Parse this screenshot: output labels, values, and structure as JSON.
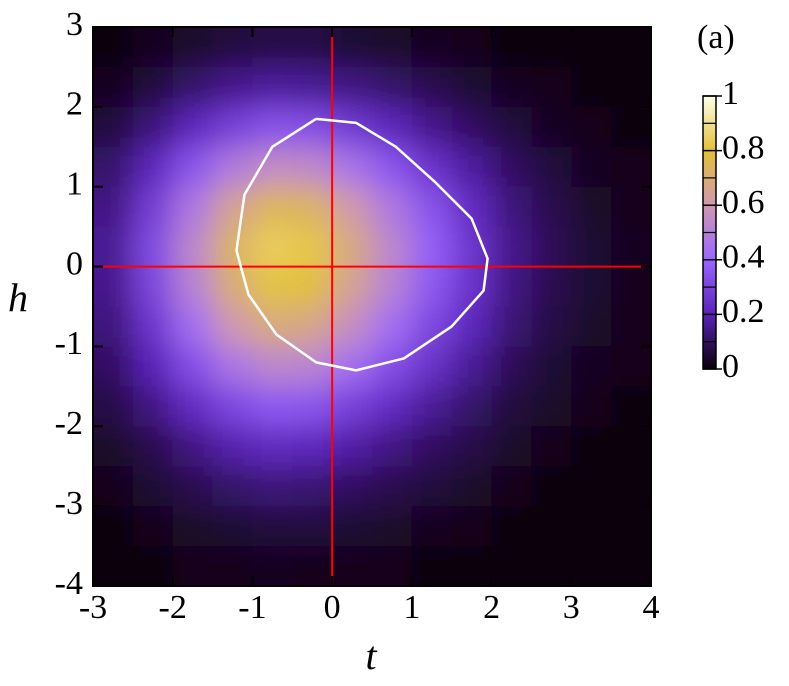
{
  "chart_data": {
    "type": "heatmap",
    "panel_label": "(a)",
    "xlabel": "t",
    "ylabel": "h",
    "x": [
      -2.75,
      -2.25,
      -1.75,
      -1.25,
      -0.75,
      -0.25,
      0.25,
      0.75,
      1.25,
      1.75,
      2.25,
      2.75,
      3.25,
      3.75
    ],
    "y": [
      2.75,
      2.25,
      1.75,
      1.25,
      0.75,
      0.25,
      -0.25,
      -0.75,
      -1.25,
      -1.75,
      -2.25,
      -2.75,
      -3.25,
      -3.75
    ],
    "z": [
      [
        0.01,
        0.03,
        0.04,
        0.06,
        0.07,
        0.07,
        0.05,
        0.04,
        0.03,
        0.02,
        0.01,
        0.01,
        0,
        0
      ],
      [
        0.03,
        0.06,
        0.11,
        0.15,
        0.17,
        0.16,
        0.14,
        0.11,
        0.08,
        0.05,
        0.03,
        0.02,
        0.01,
        0.01
      ],
      [
        0.06,
        0.13,
        0.21,
        0.29,
        0.34,
        0.33,
        0.27,
        0.21,
        0.15,
        0.1,
        0.06,
        0.03,
        0.02,
        0.01
      ],
      [
        0.11,
        0.21,
        0.35,
        0.48,
        0.55,
        0.54,
        0.45,
        0.35,
        0.25,
        0.17,
        0.1,
        0.06,
        0.03,
        0.02
      ],
      [
        0.14,
        0.28,
        0.47,
        0.65,
        0.75,
        0.73,
        0.61,
        0.47,
        0.34,
        0.23,
        0.13,
        0.08,
        0.04,
        0.02
      ],
      [
        0.16,
        0.32,
        0.53,
        0.73,
        0.84,
        0.82,
        0.68,
        0.53,
        0.38,
        0.26,
        0.15,
        0.09,
        0.05,
        0.03
      ],
      [
        0.15,
        0.31,
        0.51,
        0.7,
        0.81,
        0.79,
        0.65,
        0.51,
        0.36,
        0.25,
        0.14,
        0.08,
        0.05,
        0.02
      ],
      [
        0.13,
        0.26,
        0.43,
        0.6,
        0.69,
        0.67,
        0.56,
        0.43,
        0.31,
        0.21,
        0.12,
        0.07,
        0.04,
        0.02
      ],
      [
        0.1,
        0.2,
        0.33,
        0.46,
        0.53,
        0.52,
        0.43,
        0.33,
        0.24,
        0.16,
        0.09,
        0.05,
        0.03,
        0.02
      ],
      [
        0.07,
        0.14,
        0.23,
        0.31,
        0.36,
        0.35,
        0.29,
        0.23,
        0.16,
        0.11,
        0.06,
        0.04,
        0.02,
        0.01
      ],
      [
        0.04,
        0.08,
        0.14,
        0.19,
        0.22,
        0.21,
        0.18,
        0.14,
        0.1,
        0.07,
        0.04,
        0.02,
        0.01,
        0.01
      ],
      [
        0.02,
        0.05,
        0.08,
        0.11,
        0.13,
        0.12,
        0.1,
        0.08,
        0.06,
        0.04,
        0.02,
        0.01,
        0.01,
        0
      ],
      [
        0.01,
        0.02,
        0.04,
        0.05,
        0.06,
        0.06,
        0.05,
        0.04,
        0.03,
        0.02,
        0.01,
        0.01,
        0,
        0
      ],
      [
        0,
        0.01,
        0.02,
        0.02,
        0.03,
        0.02,
        0.02,
        0.02,
        0.01,
        0.01,
        0,
        0,
        0,
        0
      ]
    ],
    "xlim": [
      -3,
      4
    ],
    "ylim": [
      -4,
      3
    ],
    "xticks": [
      -3,
      -2,
      -1,
      0,
      1,
      2,
      3,
      4
    ],
    "yticks": [
      -4,
      -3,
      -2,
      -1,
      0,
      1,
      2,
      3
    ],
    "zlim": [
      0,
      1
    ],
    "zticks": [
      0,
      0.2,
      0.4,
      0.6,
      0.8,
      1
    ],
    "zminor_ticks": [
      0.1,
      0.3,
      0.5,
      0.7,
      0.9
    ],
    "colormap": [
      {
        "value": 0,
        "color": "#0a0008"
      },
      {
        "value": 0.2,
        "color": "#5a22b8"
      },
      {
        "value": 0.4,
        "color": "#9a66ff"
      },
      {
        "value": 0.6,
        "color": "#cf98b0"
      },
      {
        "value": 0.8,
        "color": "#e3c03a"
      },
      {
        "value": 1,
        "color": "#ffffe8"
      }
    ],
    "vlines": [
      0
    ],
    "hlines": [
      0
    ],
    "crosshair_color": "#ff0000",
    "contour": {
      "color": "#ffffff",
      "t": [
        -0.2,
        0.3,
        0.8,
        1.3,
        1.75,
        1.95,
        1.9,
        1.5,
        0.9,
        0.3,
        -0.2,
        -0.7,
        -1.05,
        -1.2,
        -1.1,
        -0.75,
        -0.2
      ],
      "h": [
        1.85,
        1.8,
        1.5,
        1.05,
        0.6,
        0.1,
        -0.3,
        -0.75,
        -1.15,
        -1.3,
        -1.2,
        -0.85,
        -0.35,
        0.2,
        0.9,
        1.5,
        1.85
      ]
    }
  }
}
